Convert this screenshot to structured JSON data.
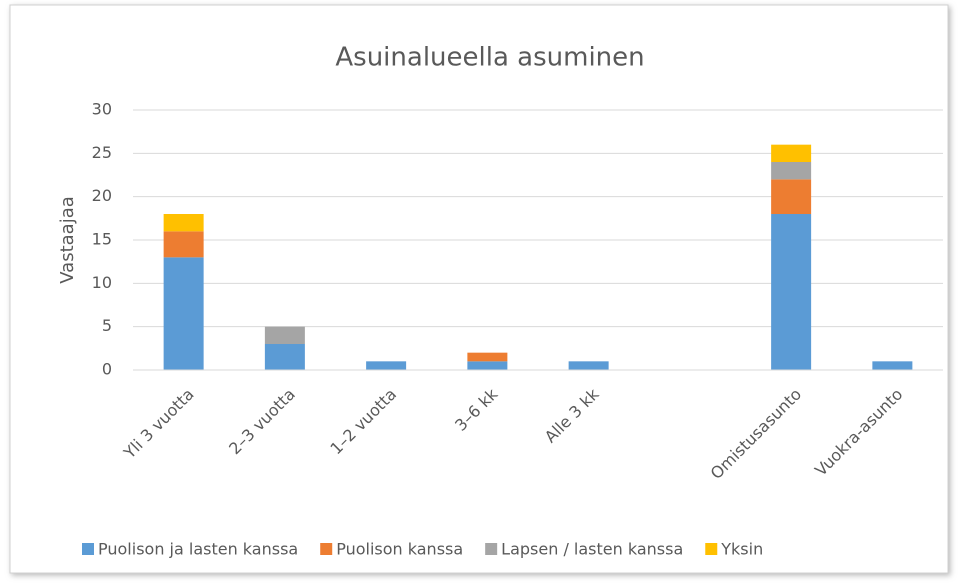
{
  "chart_data": {
    "type": "stacked_bar",
    "title": "Asuinalueella asuminen",
    "y_label": "Vastaajaa",
    "categories": [
      "Yli 3 vuotta",
      "2–3 vuotta",
      "1–2 vuotta",
      "3–6 kk",
      "Alle 3 kk",
      null,
      "Omistusasunto",
      "Vuokra-asunto"
    ],
    "series": [
      {
        "name": "Puolison ja lasten kanssa",
        "color": "#5b9bd5",
        "values": [
          13,
          3,
          1,
          1,
          1,
          null,
          18,
          1
        ]
      },
      {
        "name": "Puolison kanssa",
        "color": "#ed7d31",
        "values": [
          3,
          0,
          0,
          1,
          0,
          null,
          4,
          0
        ]
      },
      {
        "name": "Lapsen / lasten kanssa",
        "color": "#a5a5a5",
        "values": [
          0,
          2,
          0,
          0,
          0,
          null,
          2,
          0
        ]
      },
      {
        "name": "Yksin",
        "color": "#ffc000",
        "values": [
          2,
          0,
          0,
          0,
          0,
          null,
          2,
          0
        ]
      }
    ],
    "ylim": [
      0,
      30
    ],
    "yticks": [
      0,
      5,
      10,
      15,
      20,
      25,
      30
    ],
    "grid": true,
    "legend": "bottom"
  }
}
